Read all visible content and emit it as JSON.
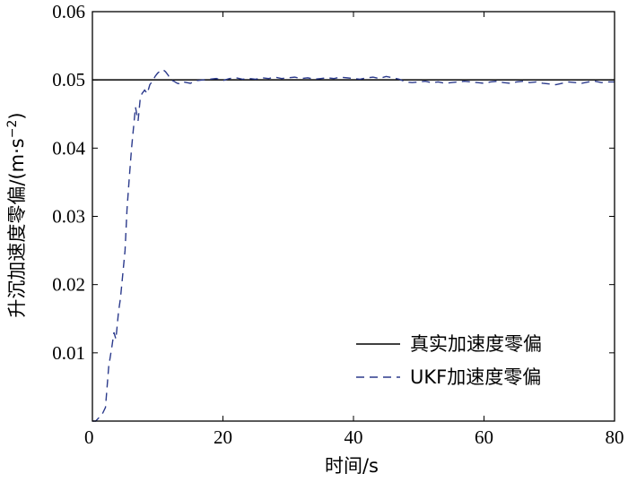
{
  "chart_data": {
    "type": "line",
    "title": "",
    "xlabel": "时间/s",
    "ylabel": "升沉加速度零偏/(m·s",
    "ylabel_sup": "−2",
    "ylabel_close": ")",
    "xlim": [
      0,
      80
    ],
    "ylim": [
      0,
      0.06
    ],
    "xticks": [
      0,
      20,
      40,
      60,
      80
    ],
    "xtick_labels": [
      "0",
      "20",
      "40",
      "60",
      "80"
    ],
    "yticks": [
      0.01,
      0.02,
      0.03,
      0.04,
      0.05,
      0.06
    ],
    "ytick_labels": [
      "0.01",
      "0.02",
      "0.03",
      "0.04",
      "0.05",
      "0.06"
    ],
    "grid": false,
    "legend_position": "bottom-right",
    "series": [
      {
        "name": "真实加速度零偏",
        "color": "#000000",
        "style": "solid",
        "x": [
          0,
          80
        ],
        "y": [
          0.05,
          0.05
        ]
      },
      {
        "name": "UKF加速度零偏",
        "color": "#2b3a8c",
        "style": "dashed",
        "x": [
          0,
          0.5,
          1.0,
          1.5,
          2.0,
          2.5,
          3.0,
          3.3,
          3.6,
          4.0,
          4.3,
          4.6,
          5.0,
          5.3,
          5.6,
          6.0,
          6.3,
          6.6,
          7.0,
          7.3,
          7.6,
          8.0,
          8.4,
          8.8,
          9.2,
          9.6,
          10.0,
          10.4,
          10.8,
          11.2,
          11.6,
          12.0,
          12.5,
          13.0,
          13.5,
          14.0,
          15.0,
          16.0,
          17.0,
          18.0,
          19.0,
          20.0,
          21.0,
          22.0,
          23.0,
          24.0,
          25.0,
          26.0,
          27.0,
          28.0,
          29.0,
          30.0,
          31.0,
          32.0,
          33.0,
          34.0,
          35.0,
          36.0,
          37.0,
          38.0,
          39.0,
          40.0,
          41.0,
          42.0,
          43.0,
          44.0,
          45.0,
          46.0,
          47.0,
          48.0,
          49.0,
          50.0,
          51.0,
          52.0,
          53.0,
          54.0,
          55.0,
          56.0,
          57.0,
          58.0,
          59.0,
          60.0,
          61.0,
          62.0,
          63.0,
          64.0,
          65.0,
          66.0,
          67.0,
          68.0,
          69.0,
          70.0,
          71.0,
          72.0,
          73.0,
          74.0,
          75.0,
          76.0,
          77.0,
          78.0,
          79.0,
          80.0
        ],
        "y": [
          0.0,
          0.0,
          0.0005,
          0.001,
          0.002,
          0.008,
          0.011,
          0.013,
          0.012,
          0.016,
          0.018,
          0.021,
          0.025,
          0.031,
          0.035,
          0.04,
          0.043,
          0.046,
          0.044,
          0.047,
          0.048,
          0.0485,
          0.048,
          0.0493,
          0.0498,
          0.0505,
          0.051,
          0.0513,
          0.0515,
          0.0512,
          0.0507,
          0.05,
          0.0498,
          0.0495,
          0.0494,
          0.0497,
          0.0495,
          0.0499,
          0.05,
          0.0501,
          0.0502,
          0.0499,
          0.0502,
          0.0503,
          0.0501,
          0.0502,
          0.0501,
          0.0503,
          0.0502,
          0.0504,
          0.0502,
          0.0503,
          0.0504,
          0.0502,
          0.0503,
          0.0501,
          0.0502,
          0.0503,
          0.0502,
          0.0504,
          0.0503,
          0.0502,
          0.0501,
          0.0503,
          0.0504,
          0.0502,
          0.0505,
          0.0503,
          0.0501,
          0.0497,
          0.0496,
          0.0497,
          0.0498,
          0.0496,
          0.0497,
          0.0495,
          0.0496,
          0.0497,
          0.0498,
          0.0497,
          0.0496,
          0.0495,
          0.0497,
          0.0498,
          0.0496,
          0.0495,
          0.0497,
          0.0498,
          0.0496,
          0.0497,
          0.0495,
          0.0494,
          0.0493,
          0.0495,
          0.0497,
          0.0496,
          0.0495,
          0.0497,
          0.0498,
          0.0496,
          0.0497,
          0.0497
        ]
      }
    ]
  }
}
